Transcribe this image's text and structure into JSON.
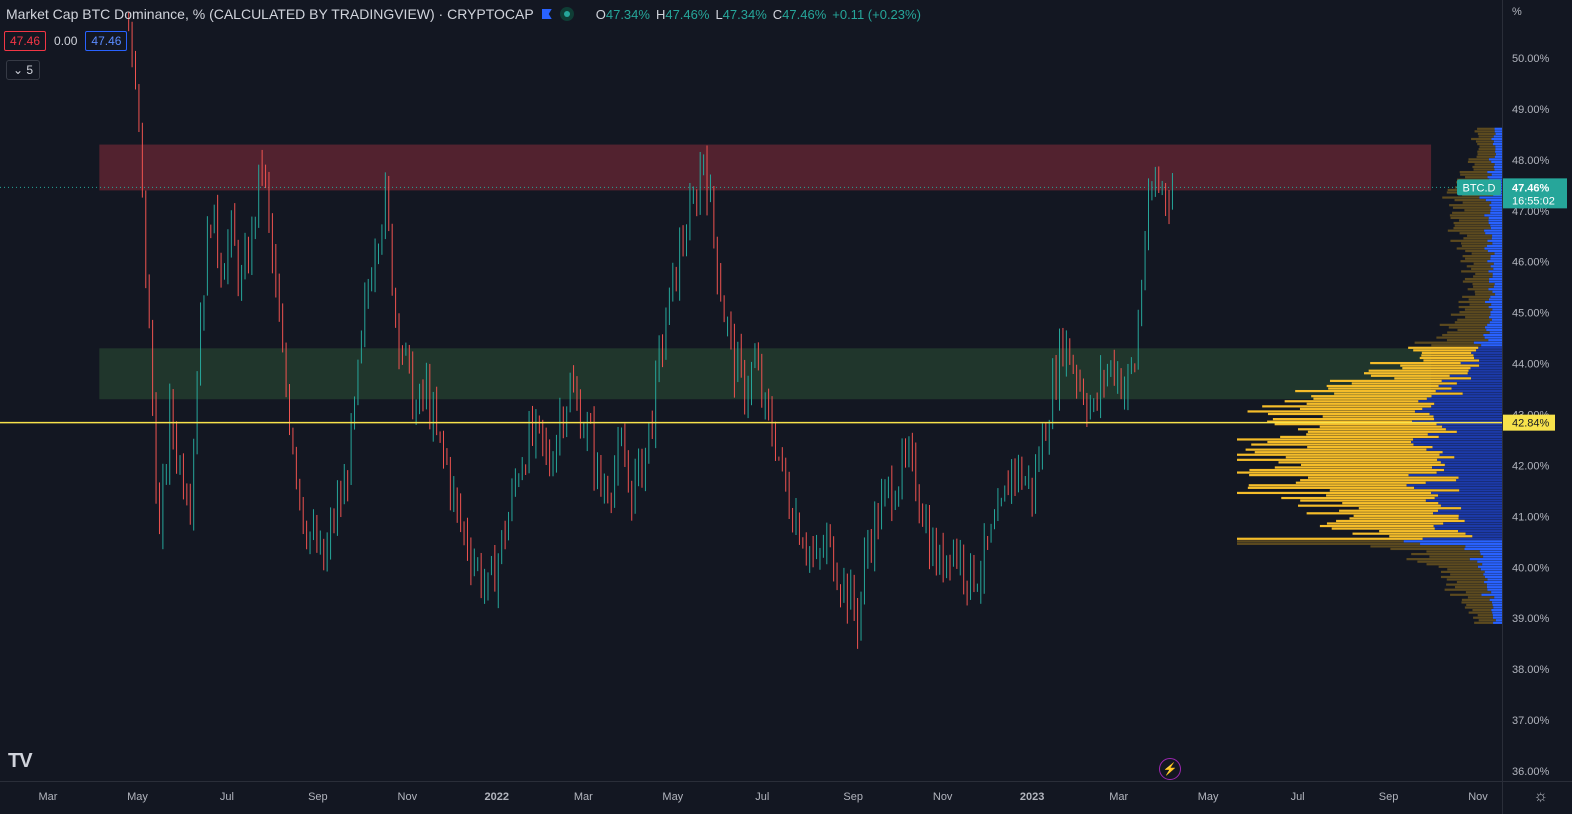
{
  "header": {
    "title": "Market Cap BTC Dominance, % (CALCULATED BY TRADINGVIEW) · CRYPTOCAP",
    "ohlc": [
      {
        "k": "O",
        "v": "47.34%"
      },
      {
        "k": "H",
        "v": "47.46%"
      },
      {
        "k": "L",
        "v": "47.34%"
      },
      {
        "k": "C",
        "v": "47.46%"
      },
      {
        "k": "",
        "v": "+0.11 (+0.23%)"
      }
    ],
    "bid": "47.46",
    "spread": "0.00",
    "ask": "47.46",
    "interval_selector": "5"
  },
  "y_axis_unit": "%",
  "colors": {
    "background": "#131722",
    "up": "#26a69a",
    "down": "#ef5350",
    "resistance_zone": "#5a2331",
    "support_zone": "#223a2e",
    "level_line": "#f7e24b",
    "vp_value_area": "#f5bd2a",
    "vp_outside": "#5c4a1f",
    "vp_blue": "#2962ff"
  },
  "price_tag": {
    "symbol": "BTC.D",
    "value": "47.46%",
    "countdown": "16:55:02"
  },
  "level_tag": "42.84%",
  "chart_data": {
    "type": "candlestick",
    "title": "Market Cap BTC Dominance, % (CALCULATED BY TRADINGVIEW) · CRYPTOCAP",
    "ylabel": "%",
    "ylim": [
      35.8,
      50.9
    ],
    "x_ticks": [
      "Mar",
      "May",
      "Jul",
      "Sep",
      "Nov",
      "2022",
      "Mar",
      "May",
      "Jul",
      "Sep",
      "Nov",
      "2023",
      "Mar",
      "May",
      "Jul",
      "Sep",
      "Nov"
    ],
    "y_ticks": [
      "50.00%",
      "49.00%",
      "48.00%",
      "47.00%",
      "46.00%",
      "45.00%",
      "44.00%",
      "43.00%",
      "42.00%",
      "41.00%",
      "40.00%",
      "39.00%",
      "38.00%",
      "37.00%",
      "36.00%"
    ],
    "close_path": [
      [
        "2021-04-25",
        50.6
      ],
      [
        "2021-05-02",
        48.5
      ],
      [
        "2021-05-09",
        44.5
      ],
      [
        "2021-05-16",
        40.5
      ],
      [
        "2021-05-23",
        43.0
      ],
      [
        "2021-05-30",
        42.0
      ],
      [
        "2021-06-06",
        41.5
      ],
      [
        "2021-06-13",
        45.0
      ],
      [
        "2021-06-20",
        47.0
      ],
      [
        "2021-06-27",
        46.0
      ],
      [
        "2021-07-04",
        46.5
      ],
      [
        "2021-07-11",
        45.5
      ],
      [
        "2021-07-18",
        46.5
      ],
      [
        "2021-07-25",
        48.0
      ],
      [
        "2021-08-01",
        46.0
      ],
      [
        "2021-08-08",
        44.0
      ],
      [
        "2021-08-15",
        42.5
      ],
      [
        "2021-08-22",
        41.0
      ],
      [
        "2021-08-29",
        40.5
      ],
      [
        "2021-09-05",
        40.0
      ],
      [
        "2021-09-12",
        41.0
      ],
      [
        "2021-09-19",
        41.5
      ],
      [
        "2021-09-26",
        43.0
      ],
      [
        "2021-10-03",
        45.0
      ],
      [
        "2021-10-10",
        46.5
      ],
      [
        "2021-10-17",
        47.2
      ],
      [
        "2021-10-24",
        45.0
      ],
      [
        "2021-10-31",
        44.0
      ],
      [
        "2021-11-07",
        43.0
      ],
      [
        "2021-11-14",
        43.5
      ],
      [
        "2021-11-21",
        42.5
      ],
      [
        "2021-11-28",
        42.0
      ],
      [
        "2021-12-05",
        41.0
      ],
      [
        "2021-12-12",
        40.5
      ],
      [
        "2021-12-19",
        40.0
      ],
      [
        "2021-12-26",
        39.5
      ],
      [
        "2022-01-02",
        40.2
      ],
      [
        "2022-01-09",
        41.0
      ],
      [
        "2022-01-16",
        42.0
      ],
      [
        "2022-01-23",
        42.5
      ],
      [
        "2022-01-30",
        42.5
      ],
      [
        "2022-02-06",
        42.0
      ],
      [
        "2022-02-13",
        43.0
      ],
      [
        "2022-02-20",
        43.5
      ],
      [
        "2022-02-27",
        43.0
      ],
      [
        "2022-03-06",
        42.5
      ],
      [
        "2022-03-13",
        41.5
      ],
      [
        "2022-03-20",
        41.8
      ],
      [
        "2022-03-27",
        42.2
      ],
      [
        "2022-04-03",
        41.5
      ],
      [
        "2022-04-10",
        42.0
      ],
      [
        "2022-04-17",
        43.0
      ],
      [
        "2022-04-24",
        44.5
      ],
      [
        "2022-05-01",
        45.5
      ],
      [
        "2022-05-08",
        46.5
      ],
      [
        "2022-05-15",
        47.0
      ],
      [
        "2022-05-22",
        48.2
      ],
      [
        "2022-05-29",
        46.5
      ],
      [
        "2022-06-05",
        45.0
      ],
      [
        "2022-06-12",
        44.0
      ],
      [
        "2022-06-19",
        43.5
      ],
      [
        "2022-06-26",
        44.0
      ],
      [
        "2022-07-03",
        43.0
      ],
      [
        "2022-07-10",
        42.5
      ],
      [
        "2022-07-17",
        41.5
      ],
      [
        "2022-07-24",
        41.0
      ],
      [
        "2022-07-31",
        40.5
      ],
      [
        "2022-08-07",
        40.0
      ],
      [
        "2022-08-14",
        40.5
      ],
      [
        "2022-08-21",
        40.0
      ],
      [
        "2022-08-28",
        39.5
      ],
      [
        "2022-09-04",
        39.0
      ],
      [
        "2022-09-11",
        40.5
      ],
      [
        "2022-09-18",
        41.0
      ],
      [
        "2022-09-25",
        41.5
      ],
      [
        "2022-10-02",
        41.8
      ],
      [
        "2022-10-09",
        42.0
      ],
      [
        "2022-10-16",
        41.5
      ],
      [
        "2022-10-23",
        40.5
      ],
      [
        "2022-10-30",
        40.0
      ],
      [
        "2022-11-06",
        40.5
      ],
      [
        "2022-11-13",
        40.2
      ],
      [
        "2022-11-20",
        39.8
      ],
      [
        "2022-11-27",
        40.0
      ],
      [
        "2022-12-04",
        40.5
      ],
      [
        "2022-12-11",
        41.0
      ],
      [
        "2022-12-18",
        42.0
      ],
      [
        "2022-12-25",
        41.8
      ],
      [
        "2023-01-01",
        41.5
      ],
      [
        "2023-01-08",
        42.5
      ],
      [
        "2023-01-15",
        43.5
      ],
      [
        "2023-01-22",
        44.5
      ],
      [
        "2023-01-29",
        44.0
      ],
      [
        "2023-02-05",
        43.5
      ],
      [
        "2023-02-12",
        43.0
      ],
      [
        "2023-02-19",
        43.8
      ],
      [
        "2023-02-26",
        44.0
      ],
      [
        "2023-03-05",
        43.5
      ],
      [
        "2023-03-12",
        44.0
      ],
      [
        "2023-03-19",
        46.5
      ],
      [
        "2023-03-26",
        47.6
      ],
      [
        "2023-04-02",
        47.4
      ],
      [
        "2023-04-09",
        47.46
      ]
    ],
    "zones": [
      {
        "from_date": "2021-04-05",
        "to_date": "2023-09-30",
        "low": 47.4,
        "high": 48.3
      },
      {
        "from_date": "2021-04-05",
        "to_date": "2023-09-30",
        "low": 43.3,
        "high": 44.3
      }
    ],
    "horizontal_line": 42.84,
    "last_price": 47.46,
    "volume_profile": {
      "poc": 40.5,
      "value_area": [
        40.5,
        44.3
      ]
    }
  }
}
